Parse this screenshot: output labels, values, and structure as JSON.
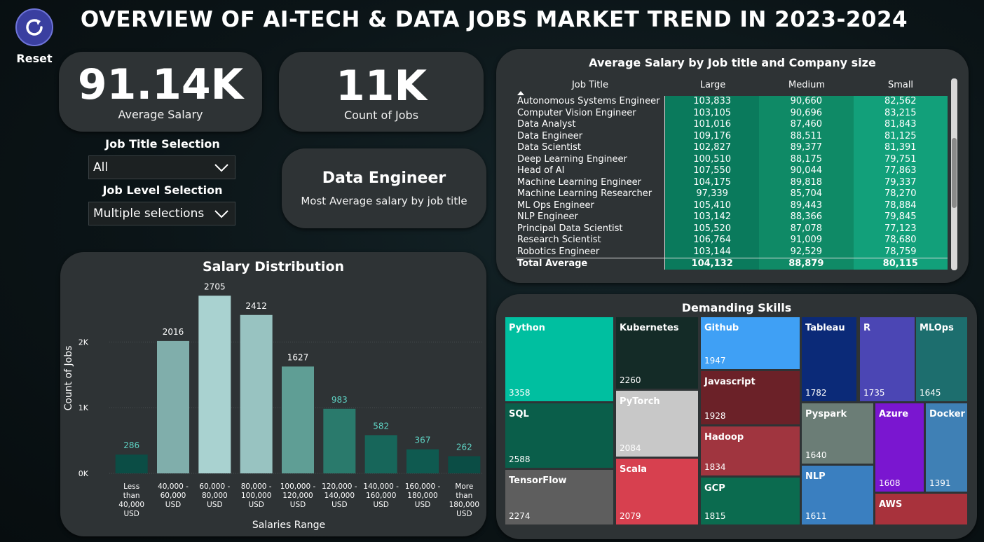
{
  "header": {
    "title": "OVERVIEW OF AI-TECH & DATA JOBS MARKET TREND IN 2023-2024",
    "reset_label": "Reset"
  },
  "kpis": {
    "avg_salary": {
      "value": "91.14K",
      "label": "Average Salary"
    },
    "job_count": {
      "value": "11K",
      "label": "Count of Jobs"
    },
    "top_title": {
      "value": "Data Engineer",
      "label": "Most Average salary by job title"
    }
  },
  "filters": {
    "job_title": {
      "title": "Job Title Selection",
      "value": "All"
    },
    "job_level": {
      "title": "Job Level Selection",
      "value": "Multiple selections"
    }
  },
  "salary_table": {
    "title": "Average Salary by Job title and Company size",
    "columns": [
      "Job Title",
      "Large",
      "Medium",
      "Small"
    ],
    "rows": [
      [
        "Autonomous Systems Engineer",
        "103,833",
        "90,660",
        "82,562"
      ],
      [
        "Computer Vision Engineer",
        "103,105",
        "90,696",
        "83,215"
      ],
      [
        "Data Analyst",
        "101,016",
        "87,460",
        "81,843"
      ],
      [
        "Data Engineer",
        "109,176",
        "88,511",
        "81,125"
      ],
      [
        "Data Scientist",
        "102,827",
        "89,377",
        "81,391"
      ],
      [
        "Deep Learning Engineer",
        "100,510",
        "88,175",
        "79,751"
      ],
      [
        "Head of AI",
        "107,550",
        "90,044",
        "77,863"
      ],
      [
        "Machine Learning Engineer",
        "104,175",
        "89,818",
        "79,337"
      ],
      [
        "Machine Learning Researcher",
        "97,339",
        "85,704",
        "78,270"
      ],
      [
        "ML Ops Engineer",
        "105,410",
        "89,443",
        "78,884"
      ],
      [
        "NLP Engineer",
        "103,142",
        "88,366",
        "79,845"
      ],
      [
        "Principal Data Scientist",
        "105,520",
        "87,078",
        "77,123"
      ],
      [
        "Research Scientist",
        "106,764",
        "91,009",
        "78,680"
      ],
      [
        "Robotics Engineer",
        "103,144",
        "92,529",
        "78,759"
      ]
    ],
    "total": [
      "Total Average",
      "104,132",
      "88,879",
      "80,115"
    ],
    "cell_colors": {
      "large": "#0a7a5c",
      "medium": "#0f8a66",
      "small": "#12a07a"
    }
  },
  "chart_data": {
    "type": "bar",
    "title": "Salary Distribution",
    "xlabel": "Salaries Range",
    "ylabel": "Count of Jobs",
    "ylim": [
      0,
      2900
    ],
    "yticks": [
      0,
      1000,
      2000
    ],
    "ytick_labels": [
      "0K",
      "1K",
      "2K"
    ],
    "grid": true,
    "categories": [
      [
        "Less",
        "than",
        "40,000",
        "USD"
      ],
      [
        "40,000 -",
        "60,000",
        "USD"
      ],
      [
        "60,000 -",
        "80,000",
        "USD"
      ],
      [
        "80,000 -",
        "100,000",
        "USD"
      ],
      [
        "100,000 -",
        "120,000",
        "USD"
      ],
      [
        "120,000 -",
        "140,000",
        "USD"
      ],
      [
        "140,000 -",
        "160,000",
        "USD"
      ],
      [
        "160,000 -",
        "180,000",
        "USD"
      ],
      [
        "More",
        "than",
        "180,000",
        "USD"
      ]
    ],
    "values": [
      286,
      2016,
      2705,
      2412,
      1627,
      983,
      582,
      367,
      262
    ],
    "bar_colors": [
      "#0b4d45",
      "#80aeab",
      "#a9d2d0",
      "#98c3c1",
      "#5f9e95",
      "#2a7a6c",
      "#17665a",
      "#0f5a50",
      "#0b4d45"
    ],
    "label_colors": [
      "#5fd3c4",
      "#ffffff",
      "#ffffff",
      "#ffffff",
      "#ffffff",
      "#5fd3c4",
      "#5fd3c4",
      "#5fd3c4",
      "#5fd3c4"
    ]
  },
  "skills": {
    "title": "Demanding Skills",
    "tiles": [
      {
        "name": "Python",
        "value": "3358",
        "color": "#00bfa0"
      },
      {
        "name": "SQL",
        "value": "2588",
        "color": "#0a5e4a"
      },
      {
        "name": "TensorFlow",
        "value": "2274",
        "color": "#5e5e5e"
      },
      {
        "name": "Kubernetes",
        "value": "2260",
        "color": "#142b27"
      },
      {
        "name": "PyTorch",
        "value": "2084",
        "color": "#c8c8c8"
      },
      {
        "name": "Scala",
        "value": "2079",
        "color": "#d7404f"
      },
      {
        "name": "Github",
        "value": "1947",
        "color": "#3fa0f5"
      },
      {
        "name": "Javascript",
        "value": "1928",
        "color": "#6b2128"
      },
      {
        "name": "Hadoop",
        "value": "1834",
        "color": "#a0353f"
      },
      {
        "name": "GCP",
        "value": "1815",
        "color": "#0b6b4f"
      },
      {
        "name": "Tableau",
        "value": "1782",
        "color": "#0b2a78"
      },
      {
        "name": "R",
        "value": "1735",
        "color": "#4b46b4"
      },
      {
        "name": "MLOps",
        "value": "1645",
        "color": "#1d6e6e"
      },
      {
        "name": "Pyspark",
        "value": "1640",
        "color": "#6b7d76"
      },
      {
        "name": "NLP",
        "value": "1611",
        "color": "#3a7fc0"
      },
      {
        "name": "Azure",
        "value": "1608",
        "color": "#7a16d0"
      },
      {
        "name": "Docker",
        "value": "1391",
        "color": "#3f80b5"
      },
      {
        "name": "AWS",
        "value": "",
        "color": "#a8323c"
      }
    ]
  }
}
